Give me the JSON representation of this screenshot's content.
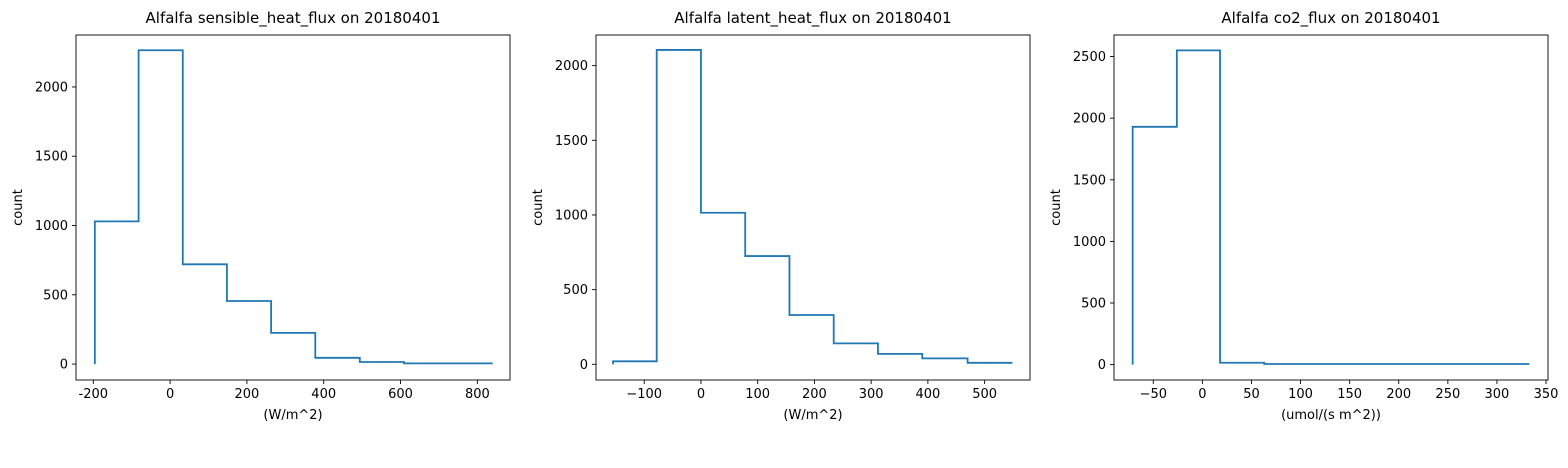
{
  "colors": {
    "series": "#1f77b4",
    "axes": "#000000",
    "background": "#ffffff"
  },
  "chart_data": [
    {
      "type": "histogram-step",
      "title": "Alfalfa sensible_heat_flux on 20180401",
      "xlabel": "(W/m^2)",
      "ylabel": "count",
      "xlim": [
        -245,
        885
      ],
      "ylim": [
        -115,
        2375
      ],
      "xticks": [
        -200,
        0,
        200,
        400,
        600,
        800
      ],
      "xtick_labels": [
        "-200",
        "0",
        "200",
        "400",
        "600",
        "800"
      ],
      "yticks": [
        0,
        500,
        1000,
        1500,
        2000
      ],
      "ytick_labels": [
        "0",
        "500",
        "1000",
        "1500",
        "2000"
      ],
      "bin_edges": [
        -196,
        -82,
        33,
        148,
        263,
        378,
        494,
        609,
        840
      ],
      "counts": [
        1030,
        2265,
        720,
        455,
        225,
        45,
        15,
        5
      ],
      "grid": false
    },
    {
      "type": "histogram-step",
      "title": "Alfalfa latent_heat_flux on 20180401",
      "xlabel": "(W/m^2)",
      "ylabel": "count",
      "xlim": [
        -185,
        580
      ],
      "ylim": [
        -105,
        2205
      ],
      "xticks": [
        -100,
        0,
        100,
        200,
        300,
        400,
        500
      ],
      "xtick_labels": [
        "−100",
        "0",
        "100",
        "200",
        "300",
        "400",
        "500"
      ],
      "yticks": [
        0,
        500,
        1000,
        1500,
        2000
      ],
      "ytick_labels": [
        "0",
        "500",
        "1000",
        "1500",
        "2000"
      ],
      "bin_edges": [
        -155,
        -78,
        0,
        78,
        156,
        234,
        312,
        390,
        470,
        549
      ],
      "counts": [
        20,
        2105,
        1015,
        725,
        330,
        140,
        70,
        40,
        10
      ],
      "grid": false
    },
    {
      "type": "histogram-step",
      "title": "Alfalfa co2_flux on 20180401",
      "xlabel": "(umol/(s m^2))",
      "ylabel": "count",
      "xlim": [
        -90,
        352
      ],
      "ylim": [
        -125,
        2675
      ],
      "xticks": [
        -50,
        0,
        50,
        100,
        150,
        200,
        250,
        300,
        350
      ],
      "xtick_labels": [
        "−50",
        "0",
        "50",
        "100",
        "150",
        "200",
        "250",
        "300",
        "350"
      ],
      "yticks": [
        0,
        500,
        1000,
        1500,
        2000,
        2500
      ],
      "ytick_labels": [
        "0",
        "500",
        "1000",
        "1500",
        "2000",
        "2500"
      ],
      "bin_edges": [
        -71,
        -26,
        18,
        63,
        333
      ],
      "counts": [
        1930,
        2550,
        15,
        5
      ],
      "grid": false
    }
  ]
}
